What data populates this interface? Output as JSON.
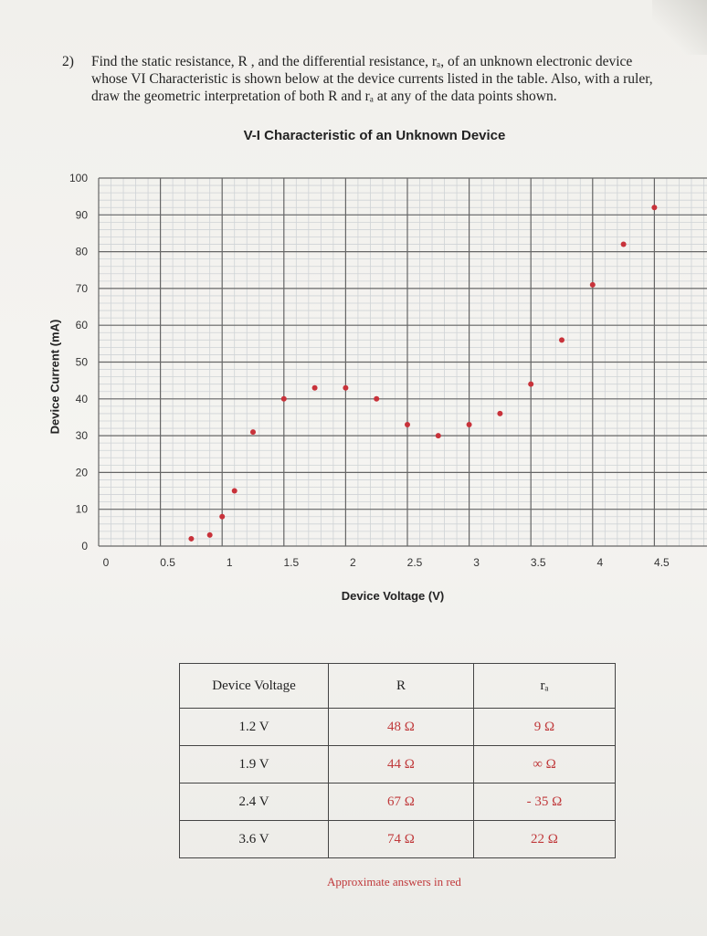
{
  "problem": {
    "number": "2)",
    "lines": [
      "Find the static resistance, R , and the differential resistance, rₐ, of an unknown electronic device",
      "whose VI Characteristic is shown below at the device currents listed in the table. Also, with a ruler,",
      "draw the geometric interpretation of both R and rₐ at any of the data points shown."
    ]
  },
  "chart_data": {
    "type": "scatter",
    "title": "V-I Characteristic of an Unknown Device",
    "xlabel": "Device Voltage  (V)",
    "ylabel": "Device Current  (mA)",
    "xlim": [
      0,
      5
    ],
    "ylim": [
      0,
      100
    ],
    "x_ticks": [
      "0",
      "0.5",
      "1",
      "1.5",
      "2",
      "2.5",
      "3",
      "3.5",
      "4",
      "4.5"
    ],
    "y_ticks": [
      "0",
      "10",
      "20",
      "30",
      "40",
      "50",
      "60",
      "70",
      "80",
      "90",
      "100"
    ],
    "grid": true,
    "point_color": "#c8323a",
    "points": [
      {
        "x": 0.75,
        "y": 2
      },
      {
        "x": 0.9,
        "y": 3
      },
      {
        "x": 1.0,
        "y": 8
      },
      {
        "x": 1.1,
        "y": 15
      },
      {
        "x": 1.25,
        "y": 31
      },
      {
        "x": 1.5,
        "y": 40
      },
      {
        "x": 1.75,
        "y": 43
      },
      {
        "x": 2.0,
        "y": 43
      },
      {
        "x": 2.25,
        "y": 40
      },
      {
        "x": 2.5,
        "y": 33
      },
      {
        "x": 2.75,
        "y": 30
      },
      {
        "x": 3.0,
        "y": 33
      },
      {
        "x": 3.25,
        "y": 36
      },
      {
        "x": 3.5,
        "y": 44
      },
      {
        "x": 3.75,
        "y": 56
      },
      {
        "x": 4.0,
        "y": 71
      },
      {
        "x": 4.25,
        "y": 82
      },
      {
        "x": 4.5,
        "y": 92
      }
    ]
  },
  "table": {
    "headers": [
      "Device Voltage",
      "R",
      "rₐ"
    ],
    "rows": [
      {
        "voltage": "1.2 V",
        "R": "48 Ω",
        "rd": "9 Ω"
      },
      {
        "voltage": "1.9 V",
        "R": "44 Ω",
        "rd": "∞ Ω"
      },
      {
        "voltage": "2.4 V",
        "R": "67 Ω",
        "rd": "- 35 Ω"
      },
      {
        "voltage": "3.6 V",
        "R": "74 Ω",
        "rd": "22 Ω"
      }
    ],
    "note": "Approximate answers in red"
  }
}
